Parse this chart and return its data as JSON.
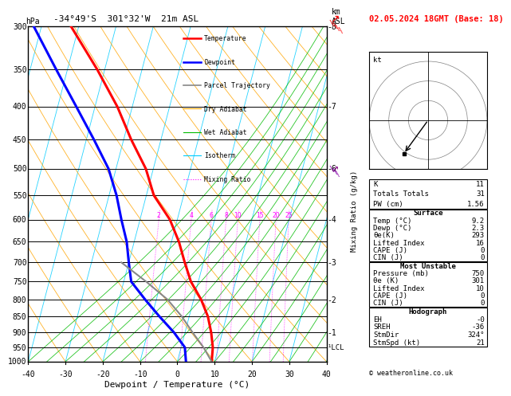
{
  "title_left": "-34°49'S  301°32'W  21m ASL",
  "title_right": "02.05.2024 18GMT (Base: 18)",
  "xlabel": "Dewpoint / Temperature (°C)",
  "pressure_levels": [
    300,
    350,
    400,
    450,
    500,
    550,
    600,
    650,
    700,
    750,
    800,
    850,
    900,
    950,
    1000
  ],
  "temp_color": "#ff0000",
  "dewp_color": "#0000ff",
  "parcel_color": "#888888",
  "dry_adiabat_color": "#ffa500",
  "wet_adiabat_color": "#00bb00",
  "isotherm_color": "#00ccff",
  "mixing_ratio_color": "#ff00ff",
  "km_labels": {
    "300": "8",
    "400": "7",
    "500": "6",
    "600": "4",
    "700": "3",
    "800": "2",
    "900": "1"
  },
  "mixing_ratio_values": [
    2,
    4,
    6,
    8,
    10,
    15,
    20,
    25
  ],
  "temp_profile": {
    "pressure": [
      1000,
      950,
      900,
      850,
      800,
      750,
      700,
      650,
      600,
      550,
      500,
      450,
      400,
      350,
      300
    ],
    "temp": [
      9.2,
      8.5,
      7.0,
      5.0,
      2.0,
      -2.0,
      -5.0,
      -8.0,
      -12.0,
      -18.0,
      -22.0,
      -28.0,
      -34.0,
      -42.0,
      -52.0
    ]
  },
  "dewp_profile": {
    "pressure": [
      1000,
      950,
      900,
      850,
      800,
      750,
      700,
      650,
      600,
      550,
      500,
      450,
      400,
      350,
      300
    ],
    "temp": [
      2.3,
      1.0,
      -3.0,
      -8.0,
      -13.0,
      -18.0,
      -20.0,
      -22.0,
      -25.0,
      -28.0,
      -32.0,
      -38.0,
      -45.0,
      -53.0,
      -62.0
    ]
  },
  "parcel_profile": {
    "pressure": [
      1000,
      950,
      900,
      850,
      800,
      750,
      700
    ],
    "temp": [
      9.2,
      6.0,
      2.0,
      -2.0,
      -7.0,
      -14.0,
      -22.0
    ]
  },
  "surface": {
    "Temp (°C)": "9.2",
    "Dewp (°C)": "2.3",
    "θe(K)": "293",
    "Lifted Index": "16",
    "CAPE (J)": "0",
    "CIN (J)": "0"
  },
  "most_unstable": {
    "Pressure (mb)": "750",
    "θe (K)": "301",
    "Lifted Index": "10",
    "CAPE (J)": "0",
    "CIN (J)": "0"
  },
  "indices": {
    "K": "11",
    "Totals Totals": "31",
    "PW (cm)": "1.56"
  },
  "hodograph": {
    "EH": "-0",
    "SREH": "-36",
    "StmDir": "324°",
    "StmSpd (kt)": "21"
  },
  "lcl_pressure": 950,
  "skew": 45,
  "pmin": 300,
  "pmax": 1000,
  "xmin": -40,
  "xmax": 40
}
